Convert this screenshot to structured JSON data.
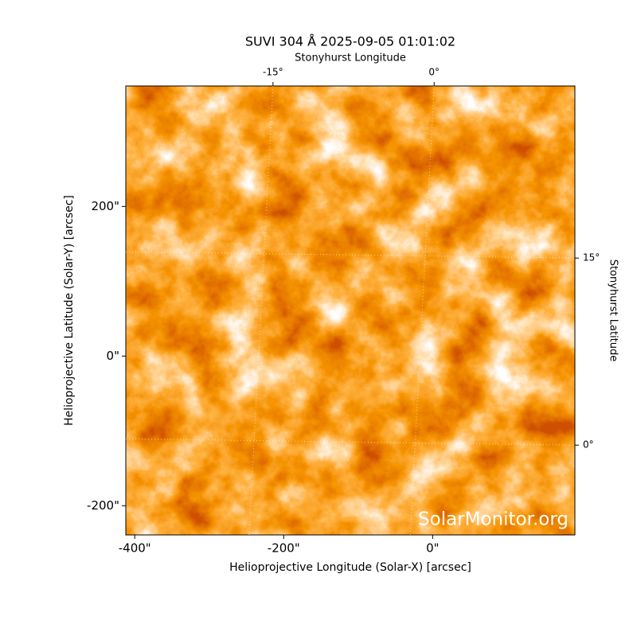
{
  "chart_data": {
    "type": "image",
    "title": "SUVI 304 Å 2025-09-05 01:01:02",
    "xlabel": "Helioprojective Longitude (Solar-X) [arcsec]",
    "ylabel": "Helioprojective Latitude (Solar-Y) [arcsec]",
    "x2label": "Stonyhurst Longitude",
    "y2label": "Stonyhurst Latitude",
    "watermark": "SolarMonitor.org",
    "xlim": [
      -412,
      191
    ],
    "ylim": [
      -239,
      361
    ],
    "xticks": [
      {
        "value": -400,
        "label": "-400\""
      },
      {
        "value": -200,
        "label": "-200\""
      },
      {
        "value": 0,
        "label": "0\""
      }
    ],
    "yticks": [
      {
        "value": -200,
        "label": "-200\""
      },
      {
        "value": 0,
        "label": "0\""
      },
      {
        "value": 200,
        "label": "200\""
      }
    ],
    "x2lim": [
      -28.7,
      13.1
    ],
    "y2lim": [
      -7.2,
      28.8
    ],
    "x2ticks": [
      {
        "value": -15,
        "label": "-15°"
      },
      {
        "value": 0,
        "label": "0°"
      }
    ],
    "y2ticks": [
      {
        "value": 0,
        "label": "0°"
      },
      {
        "value": 15,
        "label": "15°"
      }
    ],
    "grid": true
  }
}
